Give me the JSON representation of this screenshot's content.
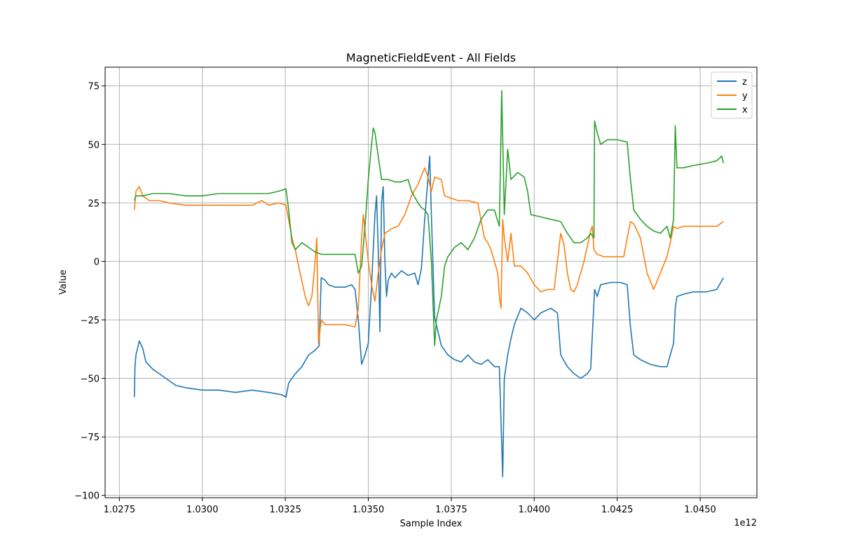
{
  "chart_data": {
    "type": "line",
    "title": "MagneticFieldEvent - All Fields",
    "xlabel": "Sample Index",
    "ylabel": "Value",
    "x_offset_label": "1e12",
    "xlim": [
      1.02707,
      1.04671
    ],
    "ylim": [
      -101,
      83
    ],
    "xticks": [
      1.0275,
      1.03,
      1.0325,
      1.035,
      1.0375,
      1.04,
      1.0425,
      1.045
    ],
    "xtick_labels": [
      "1.0275",
      "1.0300",
      "1.0325",
      "1.0350",
      "1.0375",
      "1.0400",
      "1.0425",
      "1.0450"
    ],
    "yticks": [
      -100,
      -75,
      -50,
      -25,
      0,
      25,
      50,
      75
    ],
    "ytick_labels": [
      "−100",
      "−75",
      "−50",
      "−25",
      "0",
      "25",
      "50",
      "75"
    ],
    "grid": true,
    "legend": "top-right",
    "series": [
      {
        "name": "z",
        "color": "#1f77b4",
        "points": [
          [
            1.02795,
            -58
          ],
          [
            1.02797,
            -45
          ],
          [
            1.028,
            -40
          ],
          [
            1.0281,
            -34
          ],
          [
            1.0282,
            -37
          ],
          [
            1.0283,
            -43
          ],
          [
            1.0285,
            -46
          ],
          [
            1.0287,
            -48
          ],
          [
            1.029,
            -51
          ],
          [
            1.0292,
            -53
          ],
          [
            1.0295,
            -54
          ],
          [
            1.03,
            -55
          ],
          [
            1.0305,
            -55
          ],
          [
            1.031,
            -56
          ],
          [
            1.0315,
            -55
          ],
          [
            1.032,
            -56
          ],
          [
            1.0324,
            -57
          ],
          [
            1.03252,
            -58
          ],
          [
            1.0326,
            -52
          ],
          [
            1.0328,
            -48
          ],
          [
            1.033,
            -45
          ],
          [
            1.0332,
            -40
          ],
          [
            1.0334,
            -38
          ],
          [
            1.03352,
            -36
          ],
          [
            1.03358,
            -7
          ],
          [
            1.0337,
            -8
          ],
          [
            1.0338,
            -10
          ],
          [
            1.034,
            -11
          ],
          [
            1.0343,
            -11
          ],
          [
            1.0345,
            -10
          ],
          [
            1.0346,
            -12
          ],
          [
            1.0347,
            -25
          ],
          [
            1.0348,
            -44
          ],
          [
            1.0349,
            -40
          ],
          [
            1.035,
            -35
          ],
          [
            1.0351,
            -10
          ],
          [
            1.0352,
            20
          ],
          [
            1.03525,
            28
          ],
          [
            1.0353,
            5
          ],
          [
            1.03535,
            -30
          ],
          [
            1.0354,
            25
          ],
          [
            1.03545,
            32
          ],
          [
            1.0355,
            0
          ],
          [
            1.03555,
            -15
          ],
          [
            1.0356,
            -8
          ],
          [
            1.0357,
            -5
          ],
          [
            1.0358,
            -7
          ],
          [
            1.036,
            -4
          ],
          [
            1.0362,
            -6
          ],
          [
            1.0364,
            -5
          ],
          [
            1.0365,
            -10
          ],
          [
            1.0366,
            -3
          ],
          [
            1.0367,
            18
          ],
          [
            1.03685,
            45
          ],
          [
            1.0369,
            20
          ],
          [
            1.037,
            -24
          ],
          [
            1.0372,
            -36
          ],
          [
            1.0374,
            -40
          ],
          [
            1.0376,
            -42
          ],
          [
            1.0378,
            -43
          ],
          [
            1.038,
            -40
          ],
          [
            1.0382,
            -43
          ],
          [
            1.0384,
            -44
          ],
          [
            1.0386,
            -42
          ],
          [
            1.0388,
            -45
          ],
          [
            1.03895,
            -45
          ],
          [
            1.03905,
            -92
          ],
          [
            1.0391,
            -50
          ],
          [
            1.0392,
            -40
          ],
          [
            1.0393,
            -33
          ],
          [
            1.0394,
            -27
          ],
          [
            1.0396,
            -20
          ],
          [
            1.0398,
            -22
          ],
          [
            1.04,
            -25
          ],
          [
            1.0402,
            -22
          ],
          [
            1.0405,
            -20
          ],
          [
            1.0407,
            -22
          ],
          [
            1.0408,
            -40
          ],
          [
            1.041,
            -45
          ],
          [
            1.0412,
            -48
          ],
          [
            1.0414,
            -50
          ],
          [
            1.0416,
            -48
          ],
          [
            1.0417,
            -46
          ],
          [
            1.04182,
            -12
          ],
          [
            1.0419,
            -15
          ],
          [
            1.042,
            -10
          ],
          [
            1.0423,
            -9
          ],
          [
            1.0426,
            -9
          ],
          [
            1.0428,
            -10
          ],
          [
            1.0429,
            -28
          ],
          [
            1.043,
            -40
          ],
          [
            1.0432,
            -42
          ],
          [
            1.0435,
            -44
          ],
          [
            1.0438,
            -45
          ],
          [
            1.044,
            -45
          ],
          [
            1.0442,
            -35
          ],
          [
            1.04425,
            -20
          ],
          [
            1.0443,
            -15
          ],
          [
            1.0445,
            -14
          ],
          [
            1.0448,
            -13
          ],
          [
            1.0452,
            -13
          ],
          [
            1.0455,
            -12
          ],
          [
            1.0457,
            -7
          ]
        ]
      },
      {
        "name": "y",
        "color": "#ff7f0e",
        "points": [
          [
            1.02795,
            22
          ],
          [
            1.028,
            30
          ],
          [
            1.0281,
            32
          ],
          [
            1.0282,
            28
          ],
          [
            1.0284,
            26
          ],
          [
            1.0287,
            26
          ],
          [
            1.029,
            25
          ],
          [
            1.0295,
            24
          ],
          [
            1.03,
            24
          ],
          [
            1.0305,
            24
          ],
          [
            1.031,
            24
          ],
          [
            1.0315,
            24
          ],
          [
            1.0318,
            26
          ],
          [
            1.032,
            24
          ],
          [
            1.0323,
            25
          ],
          [
            1.03252,
            24
          ],
          [
            1.0327,
            10
          ],
          [
            1.0328,
            5
          ],
          [
            1.0329,
            -2
          ],
          [
            1.0331,
            -15
          ],
          [
            1.0332,
            -19
          ],
          [
            1.0333,
            -15
          ],
          [
            1.0334,
            0
          ],
          [
            1.03345,
            10
          ],
          [
            1.0335,
            -35
          ],
          [
            1.03358,
            -25
          ],
          [
            1.0337,
            -27
          ],
          [
            1.034,
            -27
          ],
          [
            1.0343,
            -27
          ],
          [
            1.0346,
            -28
          ],
          [
            1.0347,
            -20
          ],
          [
            1.0348,
            10
          ],
          [
            1.03485,
            20
          ],
          [
            1.0349,
            13
          ],
          [
            1.035,
            0
          ],
          [
            1.0351,
            -10
          ],
          [
            1.0352,
            -17
          ],
          [
            1.0353,
            -5
          ],
          [
            1.0354,
            5
          ],
          [
            1.0355,
            12
          ],
          [
            1.0357,
            14
          ],
          [
            1.0359,
            15
          ],
          [
            1.0361,
            20
          ],
          [
            1.0363,
            28
          ],
          [
            1.0365,
            33
          ],
          [
            1.0367,
            40
          ],
          [
            1.0368,
            36
          ],
          [
            1.0369,
            30
          ],
          [
            1.037,
            36
          ],
          [
            1.0372,
            35
          ],
          [
            1.0373,
            28
          ],
          [
            1.0375,
            27
          ],
          [
            1.0377,
            26
          ],
          [
            1.038,
            26
          ],
          [
            1.0383,
            25
          ],
          [
            1.0385,
            10
          ],
          [
            1.0386,
            8
          ],
          [
            1.0387,
            5
          ],
          [
            1.0388,
            0
          ],
          [
            1.0389,
            -5
          ],
          [
            1.03895,
            -15
          ],
          [
            1.039,
            -20
          ],
          [
            1.03905,
            18
          ],
          [
            1.0391,
            10
          ],
          [
            1.0392,
            0
          ],
          [
            1.0393,
            12
          ],
          [
            1.0394,
            -2
          ],
          [
            1.0396,
            -2
          ],
          [
            1.0398,
            -5
          ],
          [
            1.04,
            -10
          ],
          [
            1.0402,
            -13
          ],
          [
            1.0404,
            -12
          ],
          [
            1.0406,
            -12
          ],
          [
            1.0407,
            0
          ],
          [
            1.0408,
            12
          ],
          [
            1.0409,
            7
          ],
          [
            1.041,
            -5
          ],
          [
            1.0411,
            -12
          ],
          [
            1.0412,
            -13
          ],
          [
            1.0413,
            -10
          ],
          [
            1.0415,
            0
          ],
          [
            1.0417,
            13
          ],
          [
            1.04175,
            15
          ],
          [
            1.0418,
            5
          ],
          [
            1.0419,
            3
          ],
          [
            1.0421,
            2
          ],
          [
            1.0425,
            2
          ],
          [
            1.0427,
            2
          ],
          [
            1.0428,
            10
          ],
          [
            1.0429,
            17
          ],
          [
            1.043,
            16
          ],
          [
            1.0432,
            10
          ],
          [
            1.0434,
            -5
          ],
          [
            1.0436,
            -12
          ],
          [
            1.0438,
            -5
          ],
          [
            1.044,
            2
          ],
          [
            1.0441,
            8
          ],
          [
            1.0442,
            15
          ],
          [
            1.0443,
            14
          ],
          [
            1.0445,
            15
          ],
          [
            1.0448,
            15
          ],
          [
            1.0452,
            15
          ],
          [
            1.0455,
            15
          ],
          [
            1.0457,
            17
          ]
        ]
      },
      {
        "name": "x",
        "color": "#2ca02c",
        "points": [
          [
            1.02795,
            26
          ],
          [
            1.028,
            28
          ],
          [
            1.0282,
            28
          ],
          [
            1.0285,
            29
          ],
          [
            1.0288,
            29
          ],
          [
            1.029,
            29
          ],
          [
            1.0295,
            28
          ],
          [
            1.03,
            28
          ],
          [
            1.0305,
            29
          ],
          [
            1.031,
            29
          ],
          [
            1.0315,
            29
          ],
          [
            1.032,
            29
          ],
          [
            1.0323,
            30
          ],
          [
            1.03252,
            31
          ],
          [
            1.0326,
            22
          ],
          [
            1.0327,
            8
          ],
          [
            1.0328,
            5
          ],
          [
            1.033,
            8
          ],
          [
            1.0332,
            6
          ],
          [
            1.0334,
            4
          ],
          [
            1.0336,
            3
          ],
          [
            1.0338,
            3
          ],
          [
            1.034,
            3
          ],
          [
            1.0343,
            3
          ],
          [
            1.0346,
            3
          ],
          [
            1.0347,
            -5
          ],
          [
            1.0348,
            -2
          ],
          [
            1.0349,
            15
          ],
          [
            1.035,
            35
          ],
          [
            1.0351,
            50
          ],
          [
            1.03515,
            57
          ],
          [
            1.0352,
            55
          ],
          [
            1.0353,
            45
          ],
          [
            1.0354,
            35
          ],
          [
            1.0356,
            35
          ],
          [
            1.0358,
            34
          ],
          [
            1.036,
            34
          ],
          [
            1.0362,
            35
          ],
          [
            1.0363,
            30
          ],
          [
            1.0365,
            25
          ],
          [
            1.0366,
            23
          ],
          [
            1.0367,
            22
          ],
          [
            1.0368,
            20
          ],
          [
            1.0369,
            0
          ],
          [
            1.037,
            -36
          ],
          [
            1.03705,
            -25
          ],
          [
            1.0371,
            -22
          ],
          [
            1.0372,
            -15
          ],
          [
            1.0373,
            -2
          ],
          [
            1.0374,
            2
          ],
          [
            1.0376,
            6
          ],
          [
            1.0378,
            8
          ],
          [
            1.038,
            5
          ],
          [
            1.0382,
            10
          ],
          [
            1.0384,
            18
          ],
          [
            1.0386,
            22
          ],
          [
            1.0388,
            22
          ],
          [
            1.03895,
            15
          ],
          [
            1.03902,
            73
          ],
          [
            1.0391,
            20
          ],
          [
            1.0392,
            48
          ],
          [
            1.0393,
            35
          ],
          [
            1.0395,
            38
          ],
          [
            1.0397,
            36
          ],
          [
            1.0398,
            30
          ],
          [
            1.0399,
            20
          ],
          [
            1.0402,
            19
          ],
          [
            1.0405,
            18
          ],
          [
            1.0408,
            17
          ],
          [
            1.041,
            12
          ],
          [
            1.0412,
            8
          ],
          [
            1.0414,
            8
          ],
          [
            1.0416,
            10
          ],
          [
            1.0417,
            12
          ],
          [
            1.0418,
            10
          ],
          [
            1.04182,
            60
          ],
          [
            1.0419,
            55
          ],
          [
            1.042,
            50
          ],
          [
            1.0422,
            52
          ],
          [
            1.0425,
            52
          ],
          [
            1.0428,
            51
          ],
          [
            1.0429,
            35
          ],
          [
            1.043,
            22
          ],
          [
            1.0432,
            18
          ],
          [
            1.0434,
            15
          ],
          [
            1.0436,
            13
          ],
          [
            1.0438,
            12
          ],
          [
            1.044,
            15
          ],
          [
            1.0441,
            10
          ],
          [
            1.0442,
            18
          ],
          [
            1.04425,
            58
          ],
          [
            1.0443,
            40
          ],
          [
            1.0445,
            40
          ],
          [
            1.0448,
            41
          ],
          [
            1.0452,
            42
          ],
          [
            1.0455,
            43
          ],
          [
            1.04565,
            45
          ],
          [
            1.0457,
            42
          ]
        ]
      }
    ]
  }
}
